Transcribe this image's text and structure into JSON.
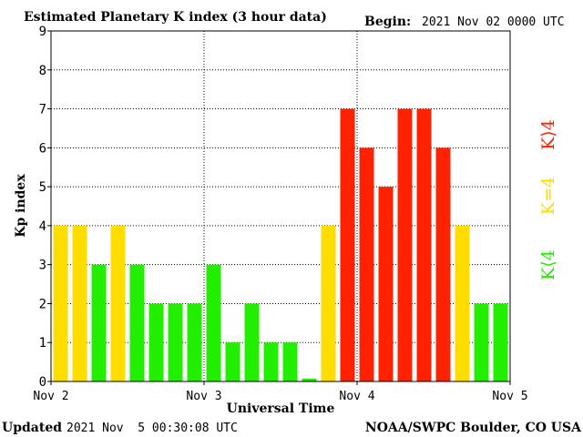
{
  "header": {
    "title": "Estimated Planetary K index (3 hour data)",
    "begin_label": "Begin:",
    "begin_value": "2021 Nov 02 0000 UTC"
  },
  "footer": {
    "updated_label": "Updated",
    "updated_value": "2021 Nov  5 00:30:08 UTC",
    "source": "NOAA/SWPC Boulder, CO USA"
  },
  "legend": {
    "high": "K⟩4",
    "equal": "K=4",
    "low": "K⟨4"
  },
  "colors": {
    "low": "#22ee00",
    "equal": "#ffdd00",
    "high": "#ff2200"
  },
  "chart_data": {
    "type": "bar",
    "xlabel": "Universal Time",
    "ylabel": "Kp index",
    "ylim": [
      0,
      9
    ],
    "yticks": [
      "0",
      "1",
      "2",
      "3",
      "4",
      "5",
      "6",
      "7",
      "8",
      "9"
    ],
    "xticks": [
      "Nov 2",
      "Nov 3",
      "Nov 4",
      "Nov 5"
    ],
    "grid": true,
    "values": [
      4,
      4,
      3,
      4,
      3,
      2,
      2,
      2,
      3,
      1,
      2,
      1,
      1,
      0.07,
      4,
      7,
      6,
      5,
      7,
      7,
      6,
      4,
      2,
      2
    ]
  }
}
